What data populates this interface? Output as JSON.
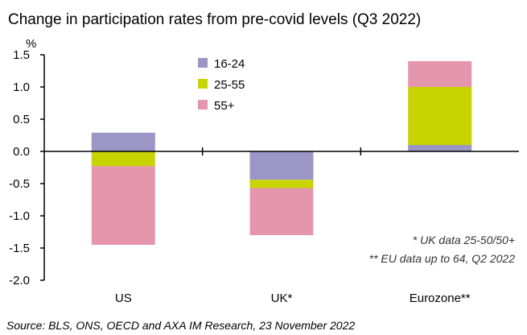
{
  "chart_data": {
    "type": "bar",
    "stacked": true,
    "title": "Change in participation rates from pre-covid levels (Q3 2022)",
    "ylabel": "%",
    "ylim": [
      -2.0,
      1.5
    ],
    "yticks": [
      "1.5",
      "1.0",
      "0.5",
      "0.0",
      "-0.5",
      "-1.0",
      "-1.5",
      "-2.0"
    ],
    "ytick_values": [
      1.5,
      1.0,
      0.5,
      0.0,
      -0.5,
      -1.0,
      -1.5,
      -2.0
    ],
    "categories": [
      "US",
      "UK*",
      "Eurozone**"
    ],
    "series": [
      {
        "name": "16-24",
        "color": "#9b96c6",
        "values": [
          0.29,
          -0.44,
          0.1
        ]
      },
      {
        "name": "25-55",
        "color": "#c8d400",
        "values": [
          -0.23,
          -0.13,
          0.9
        ]
      },
      {
        "name": "55+",
        "color": "#e596ad",
        "values": [
          -1.22,
          -0.73,
          0.4
        ]
      }
    ],
    "legend_position": "top-center",
    "grid": false,
    "notes": [
      "* UK data 25-50/50+",
      "** EU data up to 64, Q2 2022"
    ],
    "source": "Source: BLS, ONS, OECD and AXA IM Research, 23 November 2022"
  }
}
